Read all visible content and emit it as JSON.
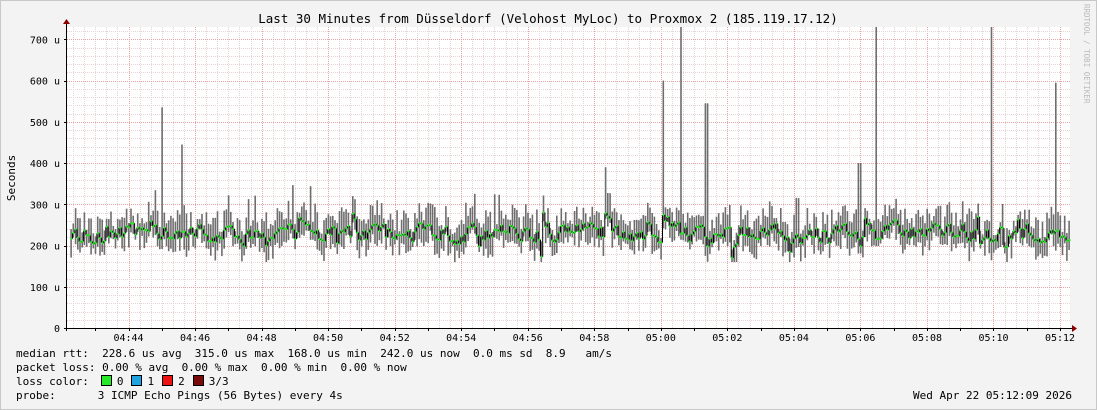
{
  "chart_data": {
    "type": "bar",
    "title": "Last 30 Minutes from Düsseldorf (Velohost MyLoc) to Proxmox 2 (185.119.17.12)",
    "ylabel": "Seconds",
    "watermark": "RRDTOOL / TOBI OETIKER",
    "ylim": [
      0,
      730
    ],
    "yticks": [
      {
        "v": 0,
        "label": "0"
      },
      {
        "v": 100,
        "label": "100 u"
      },
      {
        "v": 200,
        "label": "200 u"
      },
      {
        "v": 300,
        "label": "300 u"
      },
      {
        "v": 400,
        "label": "400 u"
      },
      {
        "v": 500,
        "label": "500 u"
      },
      {
        "v": 600,
        "label": "600 u"
      },
      {
        "v": 700,
        "label": "700 u"
      }
    ],
    "xlim_minutes": [
      42.15,
      72.3
    ],
    "xticks": [
      {
        "t": 44,
        "label": "04:44"
      },
      {
        "t": 46,
        "label": "04:46"
      },
      {
        "t": 48,
        "label": "04:48"
      },
      {
        "t": 50,
        "label": "04:50"
      },
      {
        "t": 52,
        "label": "04:52"
      },
      {
        "t": 54,
        "label": "04:54"
      },
      {
        "t": 56,
        "label": "04:56"
      },
      {
        "t": 58,
        "label": "04:58"
      },
      {
        "t": 60,
        "label": "05:00"
      },
      {
        "t": 62,
        "label": "05:02"
      },
      {
        "t": 64,
        "label": "05:04"
      },
      {
        "t": 66,
        "label": "05:06"
      },
      {
        "t": 68,
        "label": "05:08"
      },
      {
        "t": 70,
        "label": "05:10"
      },
      {
        "t": 72,
        "label": "05:12"
      }
    ],
    "spikes": [
      {
        "t": 45.0,
        "v": 535
      },
      {
        "t": 45.6,
        "v": 445
      },
      {
        "t": 58.3,
        "v": 390
      },
      {
        "t": 60.05,
        "v": 600
      },
      {
        "t": 60.6,
        "v": 730
      },
      {
        "t": 61.35,
        "v": 545
      },
      {
        "t": 65.95,
        "v": 400
      },
      {
        "t": 66.45,
        "v": 730
      },
      {
        "t": 69.9,
        "v": 730
      },
      {
        "t": 71.85,
        "v": 595
      }
    ],
    "series": [
      {
        "name": "median rtt",
        "avg": "228.6 us",
        "max": "315.0 us",
        "min": "168.0 us",
        "now": "242.0 us",
        "sd": "0.0 ms",
        "am_s": "8.9"
      },
      {
        "name": "packet loss",
        "avg": "0.00 %",
        "max": "0.00 %",
        "min": "0.00 %",
        "now": "0.00 %"
      }
    ],
    "grid": true
  },
  "legend": {
    "rtt_line": "median rtt:  228.6 us avg  315.0 us max  168.0 us min  242.0 us now  0.0 ms sd  8.9   am/s",
    "loss_line": "packet loss: 0.00 % avg  0.00 % max  0.00 % min  0.00 % now",
    "loss_color_label": "loss color:",
    "loss_colors": [
      {
        "label": "0",
        "color": "#26e826"
      },
      {
        "label": "1",
        "color": "#1fa2e0"
      },
      {
        "label": "2",
        "color": "#ee1111"
      },
      {
        "label": "3/3",
        "color": "#7a0a0a"
      }
    ],
    "probe_label": "probe:",
    "probe_text": "3 ICMP Echo Pings (56 Bytes) every 4s",
    "timestamp": "Wed Apr 22 05:12:09 2026"
  },
  "colors": {
    "background": "#f3f3f3",
    "plot": "#ffffff",
    "minor_grid": "#e6d3d3",
    "major_grid": "#e8a4a4",
    "smoke": "#6e6e6e",
    "median": "#26e826",
    "axis": "#000000",
    "arrow": "#8b0000"
  }
}
